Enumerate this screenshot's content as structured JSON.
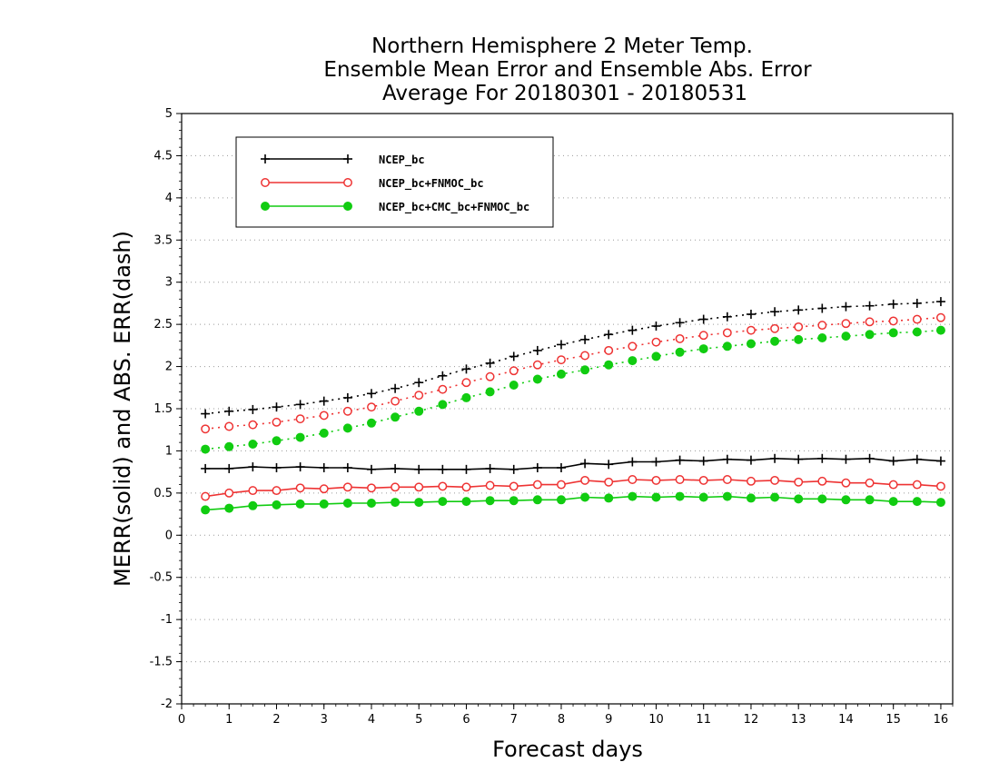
{
  "chart_data": {
    "type": "line",
    "title": [
      "Northern Hemisphere 2 Meter Temp.",
      "Ensemble Mean Error and Ensemble Abs. Error",
      "Average For 20180301 - 20180531"
    ],
    "xlabel": "Forecast days",
    "ylabel": "MERR(solid) and ABS. ERR(dash)",
    "xlim": [
      0,
      16.25
    ],
    "ylim": [
      -2,
      5
    ],
    "xticks": [
      0,
      1,
      2,
      3,
      4,
      5,
      6,
      7,
      8,
      9,
      10,
      11,
      12,
      13,
      14,
      15,
      16
    ],
    "yticks": [
      -2,
      -1.5,
      -1,
      -0.5,
      0,
      0.5,
      1,
      1.5,
      2,
      2.5,
      3,
      3.5,
      4,
      4.5,
      5
    ],
    "ytick_labels": [
      "-2",
      "-1.5",
      "-1",
      "-0.5",
      "0",
      "0.5",
      "1",
      "1.5",
      "2",
      "2.5",
      "3",
      "3.5",
      "4",
      "4.5",
      "5"
    ],
    "grid": "horizontal-dotted",
    "legend_position": "top-left",
    "x": [
      0.5,
      1,
      1.5,
      2,
      2.5,
      3,
      3.5,
      4,
      4.5,
      5,
      5.5,
      6,
      6.5,
      7,
      7.5,
      8,
      8.5,
      9,
      9.5,
      10,
      10.5,
      11,
      11.5,
      12,
      12.5,
      13,
      13.5,
      14,
      14.5,
      15,
      15.5,
      16
    ],
    "series": [
      {
        "name": "NCEP_bc",
        "color": "#000000",
        "marker": "plus",
        "merr": [
          0.79,
          0.79,
          0.81,
          0.8,
          0.81,
          0.8,
          0.8,
          0.78,
          0.79,
          0.78,
          0.78,
          0.78,
          0.79,
          0.78,
          0.8,
          0.8,
          0.85,
          0.84,
          0.87,
          0.87,
          0.89,
          0.88,
          0.9,
          0.89,
          0.91,
          0.9,
          0.91,
          0.9,
          0.91,
          0.88,
          0.9,
          0.88
        ],
        "abs_err": [
          1.44,
          1.47,
          1.49,
          1.52,
          1.55,
          1.59,
          1.63,
          1.68,
          1.74,
          1.81,
          1.89,
          1.97,
          2.04,
          2.12,
          2.19,
          2.26,
          2.32,
          2.38,
          2.43,
          2.48,
          2.52,
          2.56,
          2.59,
          2.62,
          2.65,
          2.67,
          2.69,
          2.71,
          2.72,
          2.74,
          2.75,
          2.77
        ]
      },
      {
        "name": "NCEP_bc+FNMOC_bc",
        "color": "#ee3333",
        "marker": "open-circle",
        "merr": [
          0.46,
          0.5,
          0.53,
          0.53,
          0.56,
          0.55,
          0.57,
          0.56,
          0.57,
          0.57,
          0.58,
          0.57,
          0.59,
          0.58,
          0.6,
          0.6,
          0.65,
          0.63,
          0.66,
          0.65,
          0.66,
          0.65,
          0.66,
          0.64,
          0.65,
          0.63,
          0.64,
          0.62,
          0.62,
          0.6,
          0.6,
          0.58
        ],
        "abs_err": [
          1.26,
          1.29,
          1.31,
          1.34,
          1.38,
          1.42,
          1.47,
          1.52,
          1.59,
          1.66,
          1.73,
          1.81,
          1.88,
          1.95,
          2.02,
          2.08,
          2.13,
          2.19,
          2.24,
          2.29,
          2.33,
          2.37,
          2.4,
          2.43,
          2.45,
          2.47,
          2.49,
          2.51,
          2.53,
          2.54,
          2.56,
          2.58
        ]
      },
      {
        "name": "NCEP_bc+CMC_bc+FNMOC_bc",
        "color": "#11cc11",
        "marker": "filled-circle",
        "merr": [
          0.3,
          0.32,
          0.35,
          0.36,
          0.37,
          0.37,
          0.38,
          0.38,
          0.39,
          0.39,
          0.4,
          0.4,
          0.41,
          0.41,
          0.42,
          0.42,
          0.45,
          0.44,
          0.46,
          0.45,
          0.46,
          0.45,
          0.46,
          0.44,
          0.45,
          0.43,
          0.43,
          0.42,
          0.42,
          0.4,
          0.4,
          0.39
        ],
        "abs_err": [
          1.02,
          1.05,
          1.08,
          1.12,
          1.16,
          1.21,
          1.27,
          1.33,
          1.4,
          1.47,
          1.55,
          1.63,
          1.7,
          1.78,
          1.85,
          1.91,
          1.96,
          2.02,
          2.07,
          2.12,
          2.17,
          2.21,
          2.24,
          2.27,
          2.3,
          2.32,
          2.34,
          2.36,
          2.38,
          2.4,
          2.41,
          2.43
        ]
      }
    ]
  }
}
